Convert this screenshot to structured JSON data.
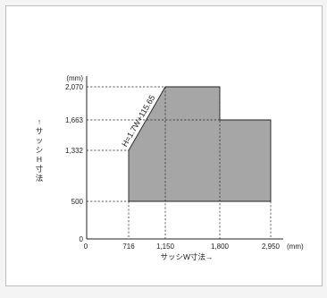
{
  "chart_data": {
    "type": "area",
    "title": "",
    "xlabel": "サッシW寸法→",
    "xunit": "(mm)",
    "ylabel": "↑サッシH寸法",
    "yunit": "(mm)",
    "x_ticks": [
      "0",
      "716",
      "1,150",
      "1,800",
      "2,950"
    ],
    "y_ticks": [
      "0",
      "500",
      "1,332",
      "1,663",
      "2,070"
    ],
    "x_values": [
      0,
      716,
      1150,
      1800,
      2950
    ],
    "y_values": [
      0,
      500,
      1332,
      1663,
      2070
    ],
    "region": [
      {
        "x": 716,
        "y": 500
      },
      {
        "x": 716,
        "y": 1332
      },
      {
        "x": 1150,
        "y": 2070
      },
      {
        "x": 1800,
        "y": 2070
      },
      {
        "x": 1800,
        "y": 1663
      },
      {
        "x": 2950,
        "y": 1663
      },
      {
        "x": 2950,
        "y": 500
      }
    ],
    "annotation": "H=1.7W+115.65",
    "fill_color": "#a6a6a6",
    "grid": "dashed guide lines at boundary values"
  }
}
